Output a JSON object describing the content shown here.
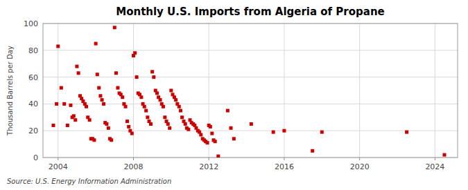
{
  "chart_data": {
    "type": "scatter",
    "title": "Monthly U.S. Imports from Algeria of Propane",
    "ylabel": "Thousand Barrels per Day",
    "source": "Source: U.S. Energy Information Administration",
    "color": "#cc0000",
    "marker": "square",
    "grid": true,
    "xlim": [
      2003.2,
      2025.2
    ],
    "ylim": [
      0,
      100
    ],
    "xticks": [
      2004,
      2008,
      2012,
      2016,
      2020,
      2024
    ],
    "yticks": [
      0,
      20,
      40,
      60,
      80,
      100
    ],
    "x": [
      2003.75,
      2003.92,
      2004.0,
      2004.17,
      2004.33,
      2004.5,
      2004.67,
      2004.75,
      2004.83,
      2004.92,
      2005.0,
      2005.08,
      2005.17,
      2005.25,
      2005.33,
      2005.42,
      2005.5,
      2005.58,
      2005.67,
      2005.75,
      2005.83,
      2005.92,
      2006.0,
      2006.08,
      2006.17,
      2006.25,
      2006.33,
      2006.42,
      2006.5,
      2006.58,
      2006.67,
      2006.75,
      2006.83,
      2007.0,
      2007.08,
      2007.17,
      2007.25,
      2007.33,
      2007.42,
      2007.5,
      2007.58,
      2007.67,
      2007.75,
      2007.83,
      2007.92,
      2008.0,
      2008.08,
      2008.17,
      2008.25,
      2008.33,
      2008.42,
      2008.5,
      2008.58,
      2008.67,
      2008.75,
      2008.83,
      2008.92,
      2009.0,
      2009.08,
      2009.17,
      2009.25,
      2009.33,
      2009.42,
      2009.5,
      2009.58,
      2009.67,
      2009.75,
      2009.83,
      2009.92,
      2010.0,
      2010.08,
      2010.17,
      2010.25,
      2010.33,
      2010.42,
      2010.5,
      2010.58,
      2010.67,
      2010.75,
      2010.83,
      2010.92,
      2011.0,
      2011.08,
      2011.17,
      2011.25,
      2011.33,
      2011.42,
      2011.5,
      2011.58,
      2011.67,
      2011.75,
      2011.83,
      2011.92,
      2012.0,
      2012.08,
      2012.17,
      2012.25,
      2012.33,
      2012.5,
      2013.0,
      2013.17,
      2013.33,
      2014.25,
      2015.42,
      2016.0,
      2017.5,
      2018.0,
      2022.5,
      2024.5
    ],
    "values": [
      24,
      40,
      83,
      52,
      40,
      24,
      39,
      30,
      31,
      28,
      68,
      63,
      46,
      44,
      42,
      40,
      38,
      30,
      28,
      14,
      14,
      13,
      85,
      62,
      52,
      46,
      43,
      40,
      26,
      25,
      22,
      14,
      13,
      97,
      63,
      52,
      48,
      47,
      45,
      40,
      38,
      27,
      23,
      20,
      18,
      76,
      78,
      60,
      48,
      47,
      45,
      40,
      38,
      35,
      30,
      27,
      25,
      64,
      60,
      50,
      48,
      45,
      43,
      40,
      38,
      30,
      27,
      25,
      22,
      50,
      47,
      45,
      43,
      40,
      38,
      35,
      30,
      27,
      25,
      22,
      21,
      28,
      26,
      25,
      24,
      22,
      20,
      19,
      17,
      14,
      13,
      12,
      11,
      24,
      23,
      18,
      13,
      12,
      1,
      35,
      22,
      14,
      25,
      19,
      20,
      5,
      19,
      19,
      2
    ]
  }
}
